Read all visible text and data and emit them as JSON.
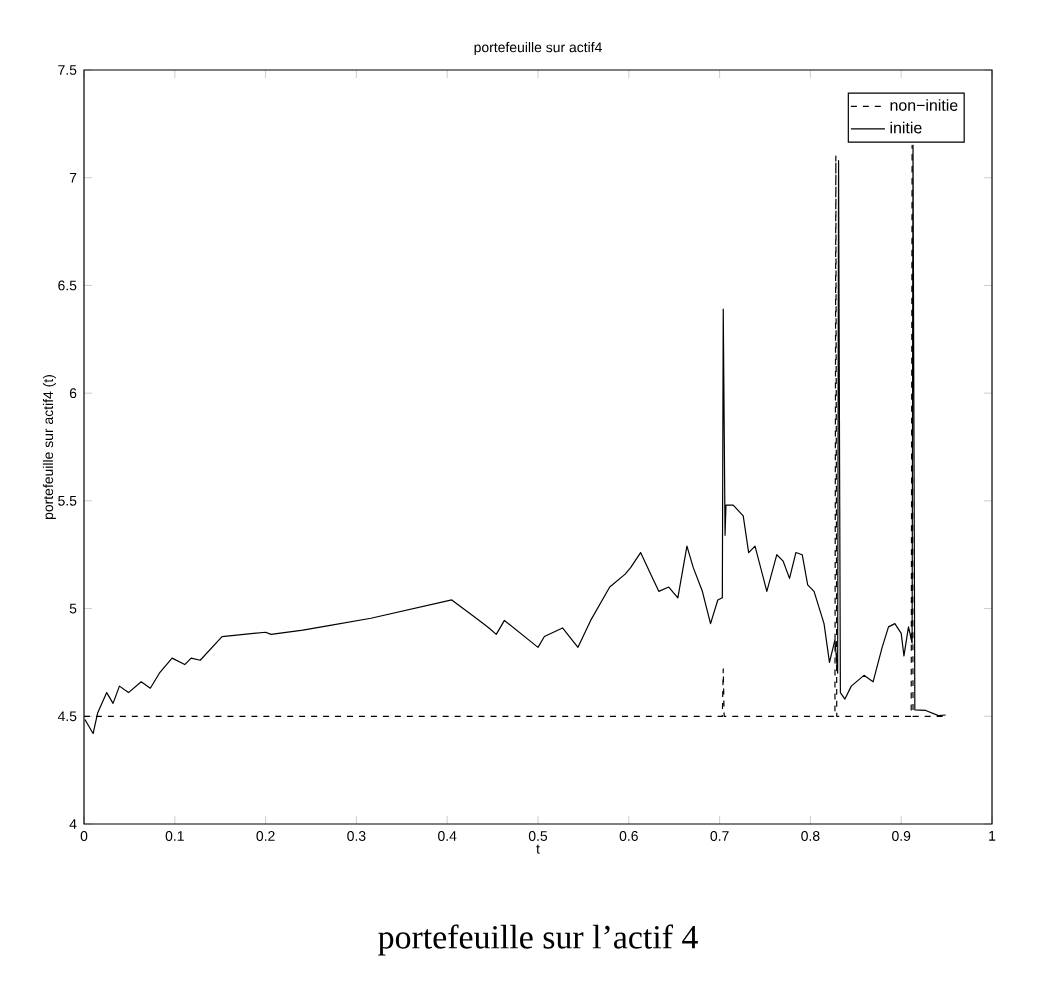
{
  "chart_data": {
    "type": "line",
    "title": "portefeuille sur actif4",
    "xlabel": "t",
    "ylabel": "portefeuille sur actif4 (t)",
    "annotations": [
      "portefeuille sur l’actif 4"
    ],
    "xlim": [
      0,
      1
    ],
    "ylim": [
      4,
      7.5
    ],
    "xticks": [
      0,
      0.1,
      0.2,
      0.3,
      0.4,
      0.5,
      0.6,
      0.7,
      0.8,
      0.9,
      1
    ],
    "yticks": [
      4,
      4.5,
      5,
      5.5,
      6,
      6.5,
      7,
      7.5
    ],
    "legend": "top right",
    "grid": false,
    "marker": "none",
    "series": [
      {
        "name": "non−initie",
        "color": "#000000",
        "line_style": "dashed",
        "x": [
          0,
          0.703,
          0.704,
          0.705,
          0.827,
          0.828,
          0.829,
          0.911,
          0.912,
          0.913,
          0.949
        ],
        "values": [
          4.5,
          4.5,
          4.72,
          4.5,
          4.5,
          7.1,
          4.5,
          4.5,
          7.15,
          4.5,
          4.5
        ]
      },
      {
        "name": "initie",
        "color": "#000000",
        "line_style": "solid",
        "x": [
          0.001,
          0.01,
          0.015,
          0.025,
          0.032,
          0.039,
          0.049,
          0.063,
          0.073,
          0.083,
          0.097,
          0.111,
          0.118,
          0.128,
          0.152,
          0.2,
          0.206,
          0.241,
          0.268,
          0.316,
          0.405,
          0.432,
          0.446,
          0.454,
          0.463,
          0.5,
          0.507,
          0.527,
          0.544,
          0.558,
          0.579,
          0.596,
          0.602,
          0.613,
          0.623,
          0.633,
          0.644,
          0.654,
          0.664,
          0.671,
          0.681,
          0.69,
          0.698,
          0.703,
          0.704,
          0.706,
          0.707,
          0.715,
          0.726,
          0.732,
          0.739,
          0.752,
          0.763,
          0.77,
          0.777,
          0.784,
          0.791,
          0.797,
          0.804,
          0.815,
          0.821,
          0.827,
          0.83,
          0.831,
          0.833,
          0.838,
          0.845,
          0.859,
          0.869,
          0.879,
          0.886,
          0.893,
          0.9,
          0.903,
          0.908,
          0.912,
          0.913,
          0.915,
          0.927,
          0.941,
          0.949
        ],
        "values": [
          4.485,
          4.42,
          4.515,
          4.61,
          4.56,
          4.64,
          4.61,
          4.66,
          4.63,
          4.7,
          4.77,
          4.74,
          4.77,
          4.76,
          4.87,
          4.89,
          4.88,
          4.9,
          4.92,
          4.955,
          5.04,
          4.955,
          4.91,
          4.88,
          4.945,
          4.82,
          4.87,
          4.91,
          4.82,
          4.945,
          5.1,
          5.16,
          5.19,
          5.26,
          5.17,
          5.08,
          5.1,
          5.05,
          5.29,
          5.19,
          5.08,
          4.93,
          5.04,
          5.05,
          6.39,
          5.34,
          5.48,
          5.48,
          5.43,
          5.26,
          5.29,
          5.08,
          5.25,
          5.22,
          5.14,
          5.26,
          5.25,
          5.11,
          5.08,
          4.93,
          4.75,
          4.855,
          4.7,
          7.08,
          4.61,
          4.58,
          4.64,
          4.69,
          4.66,
          4.82,
          4.915,
          4.93,
          4.885,
          4.78,
          4.915,
          4.84,
          7.15,
          4.53,
          4.527,
          4.503,
          4.506
        ]
      }
    ]
  }
}
